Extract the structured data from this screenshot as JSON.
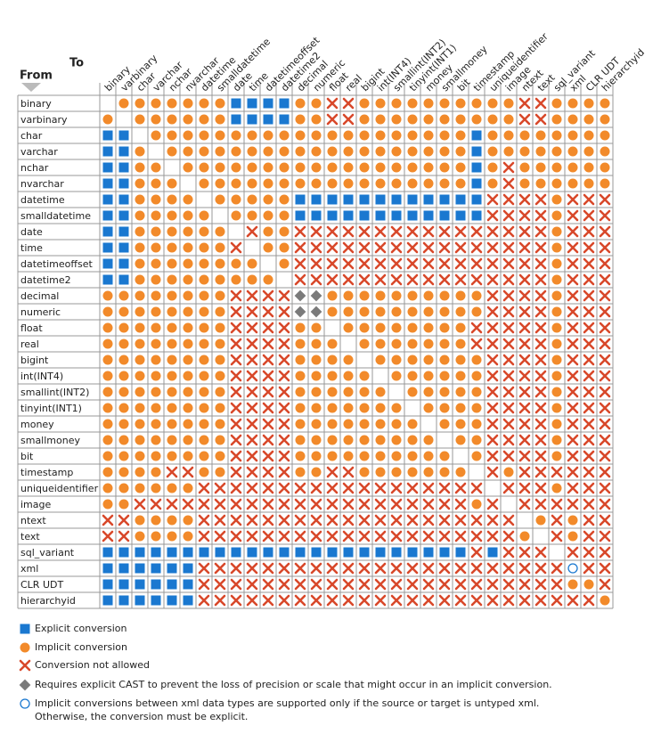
{
  "header": {
    "to": "To",
    "from": "From"
  },
  "columns": [
    "binary",
    "varbinary",
    "char",
    "varchar",
    "nchar",
    "nvarchar",
    "datetime",
    "smalldatetime",
    "date",
    "time",
    "datetimeoffset",
    "datetime2",
    "decimal",
    "numeric",
    "float",
    "real",
    "bigint",
    "int(INT4)",
    "smallint(INT2)",
    "tinyint(INT1)",
    "money",
    "smallmoney",
    "bit",
    "timestamp",
    "uniqueidentifier",
    "image",
    "ntext",
    "text",
    "sql_variant",
    "xml",
    "CLR UDT",
    "hierarchyid"
  ],
  "rows": [
    {
      "label": "binary",
      "cells": [
        null,
        "I",
        "I",
        "I",
        "I",
        "I",
        "I",
        "I",
        "E",
        "E",
        "E",
        "E",
        "I",
        "I",
        "X",
        "X",
        "I",
        "I",
        "I",
        "I",
        "I",
        "I",
        "I",
        "I",
        "I",
        "I",
        "X",
        "X",
        "I",
        "I",
        "I",
        "I"
      ]
    },
    {
      "label": "varbinary",
      "cells": [
        "I",
        null,
        "I",
        "I",
        "I",
        "I",
        "I",
        "I",
        "E",
        "E",
        "E",
        "E",
        "I",
        "I",
        "X",
        "X",
        "I",
        "I",
        "I",
        "I",
        "I",
        "I",
        "I",
        "I",
        "I",
        "I",
        "X",
        "X",
        "I",
        "I",
        "I",
        "I"
      ]
    },
    {
      "label": "char",
      "cells": [
        "E",
        "E",
        null,
        "I",
        "I",
        "I",
        "I",
        "I",
        "I",
        "I",
        "I",
        "I",
        "I",
        "I",
        "I",
        "I",
        "I",
        "I",
        "I",
        "I",
        "I",
        "I",
        "I",
        "E",
        "I",
        "I",
        "I",
        "I",
        "I",
        "I",
        "I",
        "I"
      ]
    },
    {
      "label": "varchar",
      "cells": [
        "E",
        "E",
        "I",
        null,
        "I",
        "I",
        "I",
        "I",
        "I",
        "I",
        "I",
        "I",
        "I",
        "I",
        "I",
        "I",
        "I",
        "I",
        "I",
        "I",
        "I",
        "I",
        "I",
        "E",
        "I",
        "I",
        "I",
        "I",
        "I",
        "I",
        "I",
        "I"
      ]
    },
    {
      "label": "nchar",
      "cells": [
        "E",
        "E",
        "I",
        "I",
        null,
        "I",
        "I",
        "I",
        "I",
        "I",
        "I",
        "I",
        "I",
        "I",
        "I",
        "I",
        "I",
        "I",
        "I",
        "I",
        "I",
        "I",
        "I",
        "E",
        "I",
        "X",
        "I",
        "I",
        "I",
        "I",
        "I",
        "I"
      ]
    },
    {
      "label": "nvarchar",
      "cells": [
        "E",
        "E",
        "I",
        "I",
        "I",
        null,
        "I",
        "I",
        "I",
        "I",
        "I",
        "I",
        "I",
        "I",
        "I",
        "I",
        "I",
        "I",
        "I",
        "I",
        "I",
        "I",
        "I",
        "E",
        "I",
        "X",
        "I",
        "I",
        "I",
        "I",
        "I",
        "I"
      ]
    },
    {
      "label": "datetime",
      "cells": [
        "E",
        "E",
        "I",
        "I",
        "I",
        "I",
        null,
        "I",
        "I",
        "I",
        "I",
        "I",
        "E",
        "E",
        "E",
        "E",
        "E",
        "E",
        "E",
        "E",
        "E",
        "E",
        "E",
        "E",
        "X",
        "X",
        "X",
        "X",
        "I",
        "X",
        "X",
        "X"
      ]
    },
    {
      "label": "smalldatetime",
      "cells": [
        "E",
        "E",
        "I",
        "I",
        "I",
        "I",
        "I",
        null,
        "I",
        "I",
        "I",
        "I",
        "E",
        "E",
        "E",
        "E",
        "E",
        "E",
        "E",
        "E",
        "E",
        "E",
        "E",
        "E",
        "X",
        "X",
        "X",
        "X",
        "I",
        "X",
        "X",
        "X"
      ]
    },
    {
      "label": "date",
      "cells": [
        "E",
        "E",
        "I",
        "I",
        "I",
        "I",
        "I",
        "I",
        null,
        "X",
        "I",
        "I",
        "X",
        "X",
        "X",
        "X",
        "X",
        "X",
        "X",
        "X",
        "X",
        "X",
        "X",
        "X",
        "X",
        "X",
        "X",
        "X",
        "I",
        "X",
        "X",
        "X"
      ]
    },
    {
      "label": "time",
      "cells": [
        "E",
        "E",
        "I",
        "I",
        "I",
        "I",
        "I",
        "I",
        "X",
        null,
        "I",
        "I",
        "X",
        "X",
        "X",
        "X",
        "X",
        "X",
        "X",
        "X",
        "X",
        "X",
        "X",
        "X",
        "X",
        "X",
        "X",
        "X",
        "I",
        "X",
        "X",
        "X"
      ]
    },
    {
      "label": "datetimeoffset",
      "cells": [
        "E",
        "E",
        "I",
        "I",
        "I",
        "I",
        "I",
        "I",
        "I",
        "I",
        null,
        "I",
        "X",
        "X",
        "X",
        "X",
        "X",
        "X",
        "X",
        "X",
        "X",
        "X",
        "X",
        "X",
        "X",
        "X",
        "X",
        "X",
        "I",
        "X",
        "X",
        "X"
      ]
    },
    {
      "label": "datetime2",
      "cells": [
        "E",
        "E",
        "I",
        "I",
        "I",
        "I",
        "I",
        "I",
        "I",
        "I",
        "I",
        null,
        "X",
        "X",
        "X",
        "X",
        "X",
        "X",
        "X",
        "X",
        "X",
        "X",
        "X",
        "X",
        "X",
        "X",
        "X",
        "X",
        "I",
        "X",
        "X",
        "X"
      ]
    },
    {
      "label": "decimal",
      "cells": [
        "I",
        "I",
        "I",
        "I",
        "I",
        "I",
        "I",
        "I",
        "X",
        "X",
        "X",
        "X",
        "D",
        "D",
        "I",
        "I",
        "I",
        "I",
        "I",
        "I",
        "I",
        "I",
        "I",
        "I",
        "X",
        "X",
        "X",
        "X",
        "I",
        "X",
        "X",
        "X"
      ]
    },
    {
      "label": "numeric",
      "cells": [
        "I",
        "I",
        "I",
        "I",
        "I",
        "I",
        "I",
        "I",
        "X",
        "X",
        "X",
        "X",
        "D",
        "D",
        "I",
        "I",
        "I",
        "I",
        "I",
        "I",
        "I",
        "I",
        "I",
        "I",
        "X",
        "X",
        "X",
        "X",
        "I",
        "X",
        "X",
        "X"
      ]
    },
    {
      "label": "float",
      "cells": [
        "I",
        "I",
        "I",
        "I",
        "I",
        "I",
        "I",
        "I",
        "X",
        "X",
        "X",
        "X",
        "I",
        "I",
        null,
        "I",
        "I",
        "I",
        "I",
        "I",
        "I",
        "I",
        "I",
        "X",
        "X",
        "X",
        "X",
        "X",
        "I",
        "X",
        "X",
        "X"
      ]
    },
    {
      "label": "real",
      "cells": [
        "I",
        "I",
        "I",
        "I",
        "I",
        "I",
        "I",
        "I",
        "X",
        "X",
        "X",
        "X",
        "I",
        "I",
        "I",
        null,
        "I",
        "I",
        "I",
        "I",
        "I",
        "I",
        "I",
        "X",
        "X",
        "X",
        "X",
        "X",
        "I",
        "X",
        "X",
        "X"
      ]
    },
    {
      "label": "bigint",
      "cells": [
        "I",
        "I",
        "I",
        "I",
        "I",
        "I",
        "I",
        "I",
        "X",
        "X",
        "X",
        "X",
        "I",
        "I",
        "I",
        "I",
        null,
        "I",
        "I",
        "I",
        "I",
        "I",
        "I",
        "I",
        "X",
        "X",
        "X",
        "X",
        "I",
        "X",
        "X",
        "X"
      ]
    },
    {
      "label": "int(INT4)",
      "cells": [
        "I",
        "I",
        "I",
        "I",
        "I",
        "I",
        "I",
        "I",
        "X",
        "X",
        "X",
        "X",
        "I",
        "I",
        "I",
        "I",
        "I",
        null,
        "I",
        "I",
        "I",
        "I",
        "I",
        "I",
        "X",
        "X",
        "X",
        "X",
        "I",
        "X",
        "X",
        "X"
      ]
    },
    {
      "label": "smallint(INT2)",
      "cells": [
        "I",
        "I",
        "I",
        "I",
        "I",
        "I",
        "I",
        "I",
        "X",
        "X",
        "X",
        "X",
        "I",
        "I",
        "I",
        "I",
        "I",
        "I",
        null,
        "I",
        "I",
        "I",
        "I",
        "I",
        "X",
        "X",
        "X",
        "X",
        "I",
        "X",
        "X",
        "X"
      ]
    },
    {
      "label": "tinyint(INT1)",
      "cells": [
        "I",
        "I",
        "I",
        "I",
        "I",
        "I",
        "I",
        "I",
        "X",
        "X",
        "X",
        "X",
        "I",
        "I",
        "I",
        "I",
        "I",
        "I",
        "I",
        null,
        "I",
        "I",
        "I",
        "I",
        "X",
        "X",
        "X",
        "X",
        "I",
        "X",
        "X",
        "X"
      ]
    },
    {
      "label": "money",
      "cells": [
        "I",
        "I",
        "I",
        "I",
        "I",
        "I",
        "I",
        "I",
        "X",
        "X",
        "X",
        "X",
        "I",
        "I",
        "I",
        "I",
        "I",
        "I",
        "I",
        "I",
        null,
        "I",
        "I",
        "I",
        "X",
        "X",
        "X",
        "X",
        "I",
        "X",
        "X",
        "X"
      ]
    },
    {
      "label": "smallmoney",
      "cells": [
        "I",
        "I",
        "I",
        "I",
        "I",
        "I",
        "I",
        "I",
        "X",
        "X",
        "X",
        "X",
        "I",
        "I",
        "I",
        "I",
        "I",
        "I",
        "I",
        "I",
        "I",
        null,
        "I",
        "I",
        "X",
        "X",
        "X",
        "X",
        "I",
        "X",
        "X",
        "X"
      ]
    },
    {
      "label": "bit",
      "cells": [
        "I",
        "I",
        "I",
        "I",
        "I",
        "I",
        "I",
        "I",
        "X",
        "X",
        "X",
        "X",
        "I",
        "I",
        "I",
        "I",
        "I",
        "I",
        "I",
        "I",
        "I",
        "I",
        null,
        "I",
        "X",
        "X",
        "X",
        "X",
        "I",
        "X",
        "X",
        "X"
      ]
    },
    {
      "label": "timestamp",
      "cells": [
        "I",
        "I",
        "I",
        "I",
        "X",
        "X",
        "I",
        "I",
        "X",
        "X",
        "X",
        "X",
        "I",
        "I",
        "X",
        "X",
        "I",
        "I",
        "I",
        "I",
        "I",
        "I",
        "I",
        null,
        "X",
        "I",
        "X",
        "X",
        "X",
        "X",
        "X",
        "X"
      ]
    },
    {
      "label": "uniqueidentifier",
      "cells": [
        "I",
        "I",
        "I",
        "I",
        "I",
        "I",
        "X",
        "X",
        "X",
        "X",
        "X",
        "X",
        "X",
        "X",
        "X",
        "X",
        "X",
        "X",
        "X",
        "X",
        "X",
        "X",
        "X",
        "X",
        null,
        "X",
        "X",
        "X",
        "I",
        "X",
        "X",
        "X"
      ]
    },
    {
      "label": "image",
      "cells": [
        "I",
        "I",
        "X",
        "X",
        "X",
        "X",
        "X",
        "X",
        "X",
        "X",
        "X",
        "X",
        "X",
        "X",
        "X",
        "X",
        "X",
        "X",
        "X",
        "X",
        "X",
        "X",
        "X",
        "I",
        "X",
        null,
        "X",
        "X",
        "X",
        "X",
        "X",
        "X"
      ]
    },
    {
      "label": "ntext",
      "cells": [
        "X",
        "X",
        "I",
        "I",
        "I",
        "I",
        "X",
        "X",
        "X",
        "X",
        "X",
        "X",
        "X",
        "X",
        "X",
        "X",
        "X",
        "X",
        "X",
        "X",
        "X",
        "X",
        "X",
        "X",
        "X",
        "X",
        null,
        "I",
        "X",
        "I",
        "X",
        "X"
      ]
    },
    {
      "label": "text",
      "cells": [
        "X",
        "X",
        "I",
        "I",
        "I",
        "I",
        "X",
        "X",
        "X",
        "X",
        "X",
        "X",
        "X",
        "X",
        "X",
        "X",
        "X",
        "X",
        "X",
        "X",
        "X",
        "X",
        "X",
        "X",
        "X",
        "X",
        "I",
        null,
        "X",
        "I",
        "X",
        "X"
      ]
    },
    {
      "label": "sql_variant",
      "cells": [
        "E",
        "E",
        "E",
        "E",
        "E",
        "E",
        "E",
        "E",
        "E",
        "E",
        "E",
        "E",
        "E",
        "E",
        "E",
        "E",
        "E",
        "E",
        "E",
        "E",
        "E",
        "E",
        "E",
        "X",
        "E",
        "X",
        "X",
        "X",
        null,
        "X",
        "X",
        "X"
      ]
    },
    {
      "label": "xml",
      "cells": [
        "E",
        "E",
        "E",
        "E",
        "E",
        "E",
        "X",
        "X",
        "X",
        "X",
        "X",
        "X",
        "X",
        "X",
        "X",
        "X",
        "X",
        "X",
        "X",
        "X",
        "X",
        "X",
        "X",
        "X",
        "X",
        "X",
        "X",
        "X",
        "X",
        "O",
        "X",
        "X"
      ]
    },
    {
      "label": "CLR UDT",
      "cells": [
        "E",
        "E",
        "E",
        "E",
        "E",
        "E",
        "X",
        "X",
        "X",
        "X",
        "X",
        "X",
        "X",
        "X",
        "X",
        "X",
        "X",
        "X",
        "X",
        "X",
        "X",
        "X",
        "X",
        "X",
        "X",
        "X",
        "X",
        "X",
        "X",
        "I",
        "I",
        "X"
      ]
    },
    {
      "label": "hierarchyid",
      "cells": [
        "E",
        "E",
        "E",
        "E",
        "E",
        "E",
        "X",
        "X",
        "X",
        "X",
        "X",
        "X",
        "X",
        "X",
        "X",
        "X",
        "X",
        "X",
        "X",
        "X",
        "X",
        "X",
        "X",
        "X",
        "X",
        "X",
        "X",
        "X",
        "X",
        "X",
        "X",
        "I"
      ]
    }
  ],
  "legend": [
    {
      "symbol": "E",
      "text": [
        "Explicit conversion"
      ]
    },
    {
      "symbol": "I",
      "text": [
        "Implicit conversion"
      ]
    },
    {
      "symbol": "X",
      "text": [
        "Conversion not allowed"
      ]
    },
    {
      "symbol": "D",
      "text": [
        "Requires explicit CAST to prevent the loss of precision or scale that might occur in an implicit conversion."
      ]
    },
    {
      "symbol": "O",
      "text": [
        "Implicit conversions between xml data types are supported only if the source or target is untyped xml.",
        "Otherwise, the conversion must be explicit."
      ]
    }
  ]
}
